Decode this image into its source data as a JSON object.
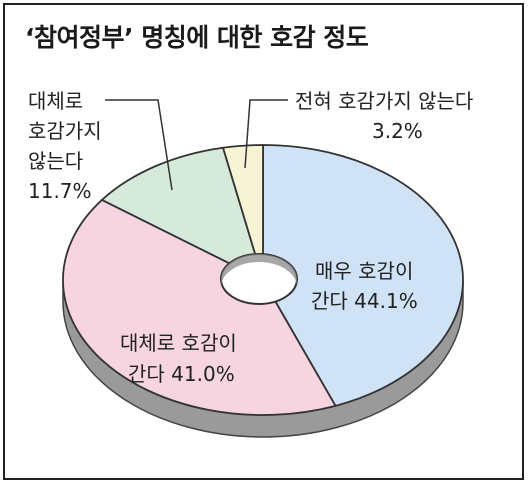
{
  "chart_data": {
    "type": "pie",
    "title": "‘참여정부’ 명칭에 대한 호감 정도",
    "slices": [
      {
        "label_lines": [
          "매우 호감이",
          "간다 44.1%"
        ],
        "value": 44.1,
        "color": "#cfe2f6"
      },
      {
        "label_lines": [
          "대체로 호감이",
          "간다 41.0%"
        ],
        "value": 41.0,
        "color": "#f6d5e1"
      },
      {
        "label_lines": [
          "대체로",
          "호감가지",
          "않는다",
          "11.7%"
        ],
        "value": 11.7,
        "color": "#d5eadb"
      },
      {
        "label_lines": [
          "전혀 호감가지 않는다",
          "3.2%"
        ],
        "value": 3.2,
        "color": "#f7f4d6"
      }
    ]
  }
}
